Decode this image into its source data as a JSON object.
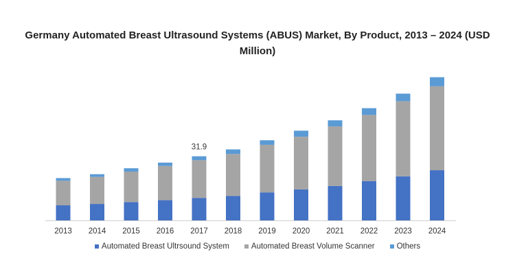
{
  "chart_data": {
    "type": "bar",
    "stacked": true,
    "title": "Germany Automated Breast Ultrasound Systems (ABUS) Market, By Product, 2013 – 2024 (USD Million)",
    "xlabel": "",
    "ylabel": "",
    "ylim": [
      0,
      105
    ],
    "grid": false,
    "legend_position": "bottom",
    "categories": [
      "2013",
      "2014",
      "2015",
      "2016",
      "2017",
      "2018",
      "2019",
      "2020",
      "2021",
      "2022",
      "2023",
      "2024"
    ],
    "series": [
      {
        "name": "Automated Breast Ultrsound System",
        "color": "#4472c4",
        "values": [
          11.2,
          12.2,
          13.6,
          15.0,
          16.7,
          18.2,
          20.8,
          23.0,
          25.6,
          29.2,
          32.7,
          37.2
        ]
      },
      {
        "name": "Automated Breast Volume Scanner",
        "color": "#a5a5a5",
        "values": [
          18.2,
          20.1,
          22.6,
          25.4,
          28.0,
          31.1,
          35.3,
          39.1,
          44.2,
          49.1,
          55.8,
          62.4
        ]
      },
      {
        "name": "Others",
        "color": "#5b9bd5",
        "values": [
          2.0,
          2.0,
          2.5,
          2.5,
          2.9,
          3.4,
          3.4,
          4.5,
          4.5,
          5.0,
          5.6,
          6.7
        ]
      }
    ],
    "annotations": [
      {
        "category": "2017",
        "text": "31.9"
      }
    ]
  }
}
